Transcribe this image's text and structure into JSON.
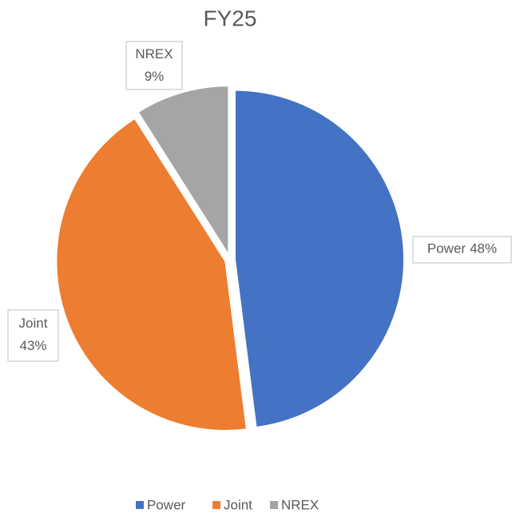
{
  "chart_data": {
    "type": "pie",
    "title": "FY25",
    "categories": [
      "Power",
      "Joint",
      "NREX"
    ],
    "values": [
      48,
      43,
      9
    ],
    "value_labels": [
      "48%",
      "43%",
      "9%"
    ],
    "colors": [
      "#4472c4",
      "#ed7d31",
      "#a5a5a5"
    ],
    "legend": "bottom"
  }
}
